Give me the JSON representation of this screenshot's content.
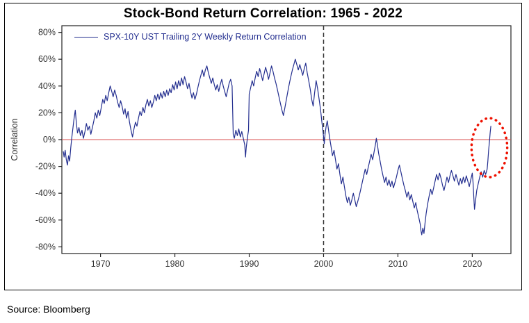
{
  "source": "Source: Bloomberg",
  "chart_data": {
    "type": "line",
    "title": "Stock-Bond Return Correlation: 1965 - 2022",
    "xlabel": "",
    "ylabel": "Correlation",
    "xlim": [
      1964.8,
      2025.2
    ],
    "ylim": [
      -85,
      85
    ],
    "x_ticks": [
      1970,
      1980,
      1990,
      2000,
      2010,
      2020
    ],
    "y_ticks": [
      -80,
      -60,
      -40,
      -20,
      0,
      20,
      40,
      60,
      80
    ],
    "y_tick_suffix": "%",
    "grid": false,
    "legend": {
      "position": "top-left",
      "label": "SPX-10Y UST Trailing 2Y Weekly Return Correlation",
      "color": "#232e8f"
    },
    "reference_lines": [
      {
        "type": "horizontal",
        "y": 0,
        "color": "#d94f4f",
        "style": "solid",
        "width": 1
      },
      {
        "type": "vertical",
        "x": 2000,
        "color": "#333333",
        "style": "dashed",
        "width": 1.5
      }
    ],
    "annotations": [
      {
        "type": "ellipse",
        "x": 2022.3,
        "y": -6,
        "rx_years": 2.4,
        "ry_pct": 22,
        "color": "#ee1100",
        "style": "dotted",
        "width": 3.5
      }
    ],
    "series": [
      {
        "name": "SPX-10Y UST Trailing 2Y Weekly Return Correlation",
        "color": "#232e8f",
        "width": 1.2,
        "points": [
          [
            1965.0,
            -9
          ],
          [
            1965.1,
            -13
          ],
          [
            1965.25,
            -8
          ],
          [
            1965.4,
            -15
          ],
          [
            1965.55,
            -19
          ],
          [
            1965.7,
            -12
          ],
          [
            1965.85,
            -16
          ],
          [
            1966.0,
            -6
          ],
          [
            1966.15,
            2
          ],
          [
            1966.3,
            9
          ],
          [
            1966.45,
            16
          ],
          [
            1966.6,
            22
          ],
          [
            1966.75,
            12
          ],
          [
            1966.9,
            5
          ],
          [
            1967.1,
            9
          ],
          [
            1967.3,
            3
          ],
          [
            1967.5,
            7
          ],
          [
            1967.7,
            1
          ],
          [
            1967.9,
            6
          ],
          [
            1968.1,
            12
          ],
          [
            1968.3,
            7
          ],
          [
            1968.5,
            10
          ],
          [
            1968.7,
            4
          ],
          [
            1968.9,
            9
          ],
          [
            1969.1,
            14
          ],
          [
            1969.3,
            20
          ],
          [
            1969.5,
            16
          ],
          [
            1969.7,
            22
          ],
          [
            1969.9,
            18
          ],
          [
            1970.1,
            24
          ],
          [
            1970.3,
            30
          ],
          [
            1970.5,
            27
          ],
          [
            1970.7,
            33
          ],
          [
            1970.9,
            29
          ],
          [
            1971.1,
            35
          ],
          [
            1971.3,
            40
          ],
          [
            1971.5,
            36
          ],
          [
            1971.7,
            32
          ],
          [
            1971.9,
            37
          ],
          [
            1972.1,
            33
          ],
          [
            1972.3,
            28
          ],
          [
            1972.5,
            24
          ],
          [
            1972.7,
            29
          ],
          [
            1972.9,
            25
          ],
          [
            1973.1,
            19
          ],
          [
            1973.3,
            23
          ],
          [
            1973.5,
            16
          ],
          [
            1973.7,
            21
          ],
          [
            1973.9,
            13
          ],
          [
            1974.1,
            7
          ],
          [
            1974.3,
            2
          ],
          [
            1974.5,
            8
          ],
          [
            1974.7,
            13
          ],
          [
            1974.9,
            10
          ],
          [
            1975.1,
            16
          ],
          [
            1975.3,
            21
          ],
          [
            1975.5,
            18
          ],
          [
            1975.7,
            24
          ],
          [
            1975.9,
            20
          ],
          [
            1976.1,
            26
          ],
          [
            1976.3,
            30
          ],
          [
            1976.5,
            25
          ],
          [
            1976.7,
            29
          ],
          [
            1976.9,
            24
          ],
          [
            1977.1,
            28
          ],
          [
            1977.3,
            33
          ],
          [
            1977.5,
            29
          ],
          [
            1977.7,
            34
          ],
          [
            1977.9,
            30
          ],
          [
            1978.1,
            35
          ],
          [
            1978.3,
            31
          ],
          [
            1978.5,
            36
          ],
          [
            1978.7,
            32
          ],
          [
            1978.9,
            37
          ],
          [
            1979.1,
            33
          ],
          [
            1979.3,
            38
          ],
          [
            1979.5,
            35
          ],
          [
            1979.7,
            41
          ],
          [
            1979.9,
            37
          ],
          [
            1980.1,
            43
          ],
          [
            1980.3,
            38
          ],
          [
            1980.5,
            44
          ],
          [
            1980.7,
            40
          ],
          [
            1980.9,
            46
          ],
          [
            1981.1,
            41
          ],
          [
            1981.3,
            47
          ],
          [
            1981.5,
            43
          ],
          [
            1981.7,
            38
          ],
          [
            1981.9,
            42
          ],
          [
            1982.1,
            36
          ],
          [
            1982.3,
            31
          ],
          [
            1982.5,
            35
          ],
          [
            1982.7,
            30
          ],
          [
            1982.9,
            34
          ],
          [
            1983.1,
            39
          ],
          [
            1983.3,
            44
          ],
          [
            1983.5,
            48
          ],
          [
            1983.7,
            52
          ],
          [
            1983.9,
            47
          ],
          [
            1984.1,
            52
          ],
          [
            1984.3,
            55
          ],
          [
            1984.5,
            50
          ],
          [
            1984.7,
            46
          ],
          [
            1984.9,
            42
          ],
          [
            1985.1,
            46
          ],
          [
            1985.3,
            41
          ],
          [
            1985.5,
            37
          ],
          [
            1985.7,
            41
          ],
          [
            1985.9,
            36
          ],
          [
            1986.1,
            41
          ],
          [
            1986.3,
            45
          ],
          [
            1986.5,
            40
          ],
          [
            1986.7,
            36
          ],
          [
            1986.9,
            32
          ],
          [
            1987.1,
            37
          ],
          [
            1987.3,
            42
          ],
          [
            1987.5,
            45
          ],
          [
            1987.7,
            40
          ],
          [
            1987.85,
            4
          ],
          [
            1988.0,
            1
          ],
          [
            1988.2,
            7
          ],
          [
            1988.4,
            3
          ],
          [
            1988.6,
            8
          ],
          [
            1988.8,
            2
          ],
          [
            1989.0,
            6
          ],
          [
            1989.2,
            1
          ],
          [
            1989.4,
            -4
          ],
          [
            1989.5,
            -13
          ],
          [
            1989.6,
            -6
          ],
          [
            1989.8,
            3
          ],
          [
            1989.9,
            7
          ],
          [
            1990.0,
            34
          ],
          [
            1990.2,
            39
          ],
          [
            1990.4,
            44
          ],
          [
            1990.6,
            40
          ],
          [
            1990.8,
            46
          ],
          [
            1991.0,
            51
          ],
          [
            1991.2,
            47
          ],
          [
            1991.4,
            53
          ],
          [
            1991.6,
            49
          ],
          [
            1991.8,
            44
          ],
          [
            1992.0,
            49
          ],
          [
            1992.2,
            54
          ],
          [
            1992.4,
            50
          ],
          [
            1992.6,
            45
          ],
          [
            1992.8,
            50
          ],
          [
            1993.0,
            55
          ],
          [
            1993.2,
            51
          ],
          [
            1993.4,
            46
          ],
          [
            1993.6,
            42
          ],
          [
            1993.8,
            37
          ],
          [
            1994.0,
            32
          ],
          [
            1994.2,
            27
          ],
          [
            1994.4,
            22
          ],
          [
            1994.6,
            18
          ],
          [
            1994.8,
            24
          ],
          [
            1995.0,
            30
          ],
          [
            1995.2,
            36
          ],
          [
            1995.4,
            42
          ],
          [
            1995.6,
            47
          ],
          [
            1995.8,
            52
          ],
          [
            1996.0,
            56
          ],
          [
            1996.2,
            60
          ],
          [
            1996.4,
            56
          ],
          [
            1996.6,
            52
          ],
          [
            1996.8,
            56
          ],
          [
            1997.0,
            52
          ],
          [
            1997.2,
            48
          ],
          [
            1997.4,
            53
          ],
          [
            1997.6,
            57
          ],
          [
            1997.8,
            50
          ],
          [
            1998.0,
            44
          ],
          [
            1998.2,
            38
          ],
          [
            1998.4,
            30
          ],
          [
            1998.6,
            25
          ],
          [
            1998.8,
            35
          ],
          [
            1999.0,
            44
          ],
          [
            1999.2,
            38
          ],
          [
            1999.4,
            30
          ],
          [
            1999.6,
            22
          ],
          [
            1999.8,
            12
          ],
          [
            2000.0,
            2
          ],
          [
            2000.1,
            -3
          ],
          [
            2000.2,
            4
          ],
          [
            2000.35,
            10
          ],
          [
            2000.5,
            14
          ],
          [
            2000.65,
            8
          ],
          [
            2000.8,
            2
          ],
          [
            2001.0,
            -5
          ],
          [
            2001.2,
            -12
          ],
          [
            2001.4,
            -8
          ],
          [
            2001.6,
            -15
          ],
          [
            2001.8,
            -22
          ],
          [
            2002.0,
            -18
          ],
          [
            2002.2,
            -26
          ],
          [
            2002.4,
            -33
          ],
          [
            2002.6,
            -28
          ],
          [
            2002.8,
            -35
          ],
          [
            2003.0,
            -42
          ],
          [
            2003.2,
            -47
          ],
          [
            2003.4,
            -43
          ],
          [
            2003.6,
            -49
          ],
          [
            2003.8,
            -45
          ],
          [
            2004.0,
            -40
          ],
          [
            2004.2,
            -45
          ],
          [
            2004.4,
            -50
          ],
          [
            2004.6,
            -46
          ],
          [
            2004.8,
            -42
          ],
          [
            2005.0,
            -37
          ],
          [
            2005.2,
            -32
          ],
          [
            2005.4,
            -27
          ],
          [
            2005.6,
            -22
          ],
          [
            2005.8,
            -26
          ],
          [
            2006.0,
            -21
          ],
          [
            2006.2,
            -16
          ],
          [
            2006.4,
            -11
          ],
          [
            2006.6,
            -15
          ],
          [
            2006.8,
            -9
          ],
          [
            2007.0,
            -3
          ],
          [
            2007.1,
            1
          ],
          [
            2007.25,
            -4
          ],
          [
            2007.4,
            -10
          ],
          [
            2007.6,
            -16
          ],
          [
            2007.8,
            -22
          ],
          [
            2008.0,
            -27
          ],
          [
            2008.2,
            -32
          ],
          [
            2008.4,
            -28
          ],
          [
            2008.6,
            -34
          ],
          [
            2008.8,
            -30
          ],
          [
            2009.0,
            -35
          ],
          [
            2009.2,
            -31
          ],
          [
            2009.4,
            -36
          ],
          [
            2009.6,
            -32
          ],
          [
            2009.8,
            -28
          ],
          [
            2010.0,
            -23
          ],
          [
            2010.2,
            -19
          ],
          [
            2010.4,
            -24
          ],
          [
            2010.6,
            -29
          ],
          [
            2010.8,
            -34
          ],
          [
            2011.0,
            -38
          ],
          [
            2011.2,
            -43
          ],
          [
            2011.4,
            -39
          ],
          [
            2011.6,
            -45
          ],
          [
            2011.8,
            -41
          ],
          [
            2012.0,
            -46
          ],
          [
            2012.2,
            -51
          ],
          [
            2012.4,
            -47
          ],
          [
            2012.6,
            -53
          ],
          [
            2012.8,
            -58
          ],
          [
            2013.0,
            -63
          ],
          [
            2013.1,
            -68
          ],
          [
            2013.2,
            -71
          ],
          [
            2013.35,
            -66
          ],
          [
            2013.5,
            -70
          ],
          [
            2013.65,
            -62
          ],
          [
            2013.8,
            -55
          ],
          [
            2014.0,
            -48
          ],
          [
            2014.2,
            -42
          ],
          [
            2014.4,
            -37
          ],
          [
            2014.6,
            -41
          ],
          [
            2014.8,
            -36
          ],
          [
            2015.0,
            -31
          ],
          [
            2015.2,
            -26
          ],
          [
            2015.4,
            -30
          ],
          [
            2015.6,
            -25
          ],
          [
            2015.8,
            -29
          ],
          [
            2016.0,
            -34
          ],
          [
            2016.2,
            -38
          ],
          [
            2016.4,
            -33
          ],
          [
            2016.6,
            -28
          ],
          [
            2016.8,
            -32
          ],
          [
            2017.0,
            -27
          ],
          [
            2017.2,
            -23
          ],
          [
            2017.4,
            -27
          ],
          [
            2017.6,
            -31
          ],
          [
            2017.8,
            -26
          ],
          [
            2018.0,
            -30
          ],
          [
            2018.2,
            -34
          ],
          [
            2018.4,
            -29
          ],
          [
            2018.6,
            -33
          ],
          [
            2018.8,
            -28
          ],
          [
            2019.0,
            -32
          ],
          [
            2019.2,
            -27
          ],
          [
            2019.4,
            -31
          ],
          [
            2019.6,
            -35
          ],
          [
            2019.8,
            -30
          ],
          [
            2020.0,
            -25
          ],
          [
            2020.1,
            -32
          ],
          [
            2020.2,
            -42
          ],
          [
            2020.3,
            -52
          ],
          [
            2020.45,
            -45
          ],
          [
            2020.6,
            -38
          ],
          [
            2020.8,
            -33
          ],
          [
            2021.0,
            -28
          ],
          [
            2021.2,
            -24
          ],
          [
            2021.4,
            -28
          ],
          [
            2021.6,
            -23
          ],
          [
            2021.8,
            -26
          ],
          [
            2022.0,
            -22
          ],
          [
            2022.1,
            -16
          ],
          [
            2022.2,
            -8
          ],
          [
            2022.3,
            -2
          ],
          [
            2022.4,
            5
          ],
          [
            2022.5,
            10
          ]
        ]
      }
    ]
  }
}
